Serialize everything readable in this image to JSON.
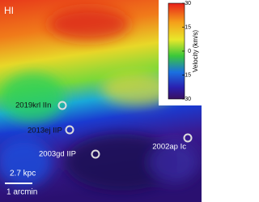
{
  "panel_label": "HI",
  "colorbar": {
    "label": "Velocity (km/s)",
    "lim": [
      -30,
      30
    ],
    "ticks": [
      30,
      15,
      0,
      -15,
      -30
    ]
  },
  "sources": [
    {
      "label": "2019krl IIn"
    },
    {
      "label": "2013ej IIP"
    },
    {
      "label": "2003gd IIP"
    },
    {
      "label": "2002ap Ic"
    }
  ],
  "scalebar": {
    "physical": "2.7 kpc",
    "angular": "1 arcmin"
  }
}
